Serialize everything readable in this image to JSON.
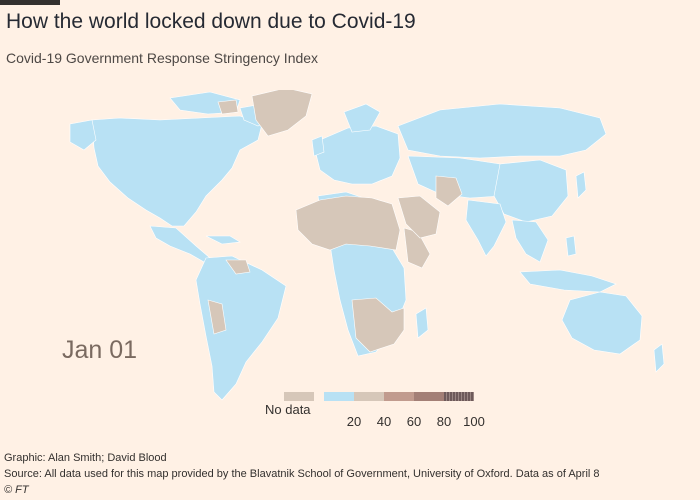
{
  "title": "How the world locked down due to Covid-19",
  "subtitle": "Covid-19 Government Response Stringency Index",
  "date_label": "Jan 01",
  "legend": {
    "no_data_label": "No data",
    "ticks": [
      "20",
      "40",
      "60",
      "80",
      "100"
    ],
    "colors": {
      "no_data": "#d6c7b9",
      "0-20": "#b8e1f4",
      "20-40": "#d6c7b9",
      "40-60": "#c19b8e",
      "60-80": "#a37f76",
      "80-100": "#6e5a5a"
    }
  },
  "colors": {
    "background": "#fff1e5",
    "low_stringency": "#b8e1f4",
    "no_data": "#d6c7b9"
  },
  "credit": "Graphic: Alan Smith; David Blood",
  "source": "Source: All data used for this map provided by the Blavatnik School of Government, University of Oxford. Data as of April 8",
  "copyright": "© FT"
}
